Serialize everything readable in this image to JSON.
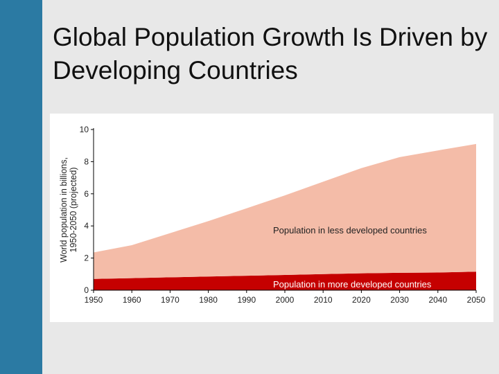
{
  "slide": {
    "title": "Global Population Growth Is Driven by Developing Countries"
  },
  "colors": {
    "sidebar": "#2b7aa3",
    "less_developed": "#f4bca8",
    "more_developed": "#c50000"
  },
  "chart_data": {
    "type": "area",
    "stacked": true,
    "title": "",
    "xlabel": "",
    "ylabel": "World population in billions, 1950-2050 (projected)",
    "ylabel_lines": [
      "World population in billions,",
      "1950-2050 (projected)"
    ],
    "x": [
      1950,
      1960,
      1970,
      1980,
      1990,
      2000,
      2010,
      2020,
      2030,
      2040,
      2050
    ],
    "xlim": [
      1950,
      2050
    ],
    "ylim": [
      0,
      10
    ],
    "yticks": [
      0,
      2,
      4,
      6,
      8,
      10
    ],
    "xtick_labels": [
      "1950",
      "1960",
      "1970",
      "1980",
      "1990",
      "2000",
      "2010",
      "2020",
      "2030",
      "2040",
      "2050"
    ],
    "grid": false,
    "legend": "inline labels",
    "series": [
      {
        "name": "Population in more developed countries",
        "label": "Population in more developed countries",
        "color": "#c50000",
        "values": [
          0.7,
          0.75,
          0.8,
          0.85,
          0.9,
          0.95,
          1.0,
          1.05,
          1.08,
          1.1,
          1.15
        ]
      },
      {
        "name": "Population in less developed countries",
        "label": "Population in less developed countries",
        "color": "#f4bca8",
        "values": [
          1.65,
          2.05,
          2.75,
          3.45,
          4.2,
          4.95,
          5.75,
          6.55,
          7.2,
          7.6,
          7.95
        ]
      }
    ]
  }
}
